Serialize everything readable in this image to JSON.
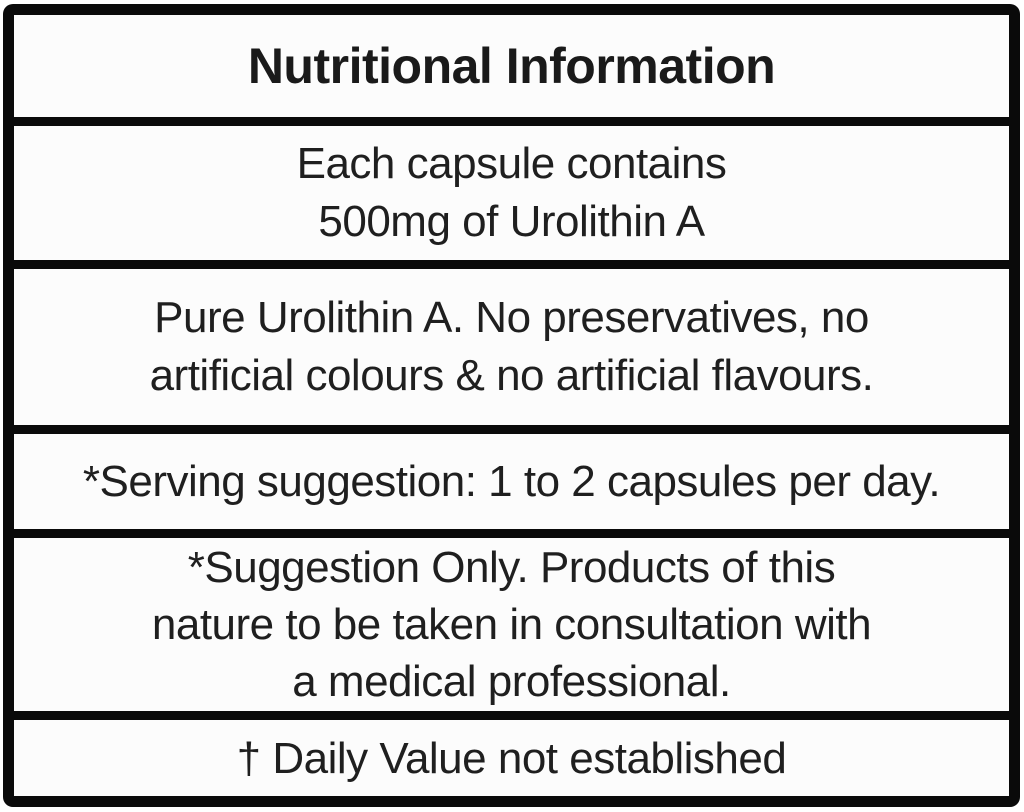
{
  "label": {
    "title": "Nutritional Information",
    "rows": [
      {
        "name": "capsule-contents",
        "text": "Each capsule contains\n500mg of Urolithin A"
      },
      {
        "name": "purity-statement",
        "text": "Pure Urolithin A. No preservatives, no\nartificial colours & no artificial flavours."
      },
      {
        "name": "serving-suggestion",
        "text": "*Serving suggestion: 1 to 2 capsules per day."
      },
      {
        "name": "consultation-note",
        "text": "*Suggestion Only. Products of this\nnature to be taken in consultation with\na medical professional."
      },
      {
        "name": "daily-value-note",
        "text": "† Daily Value not established"
      }
    ],
    "colors": {
      "border": "#0a0a0a",
      "row_background": "#fcfcfc",
      "text": "#1f1f1f",
      "title_text": "#1a1a1a"
    }
  }
}
